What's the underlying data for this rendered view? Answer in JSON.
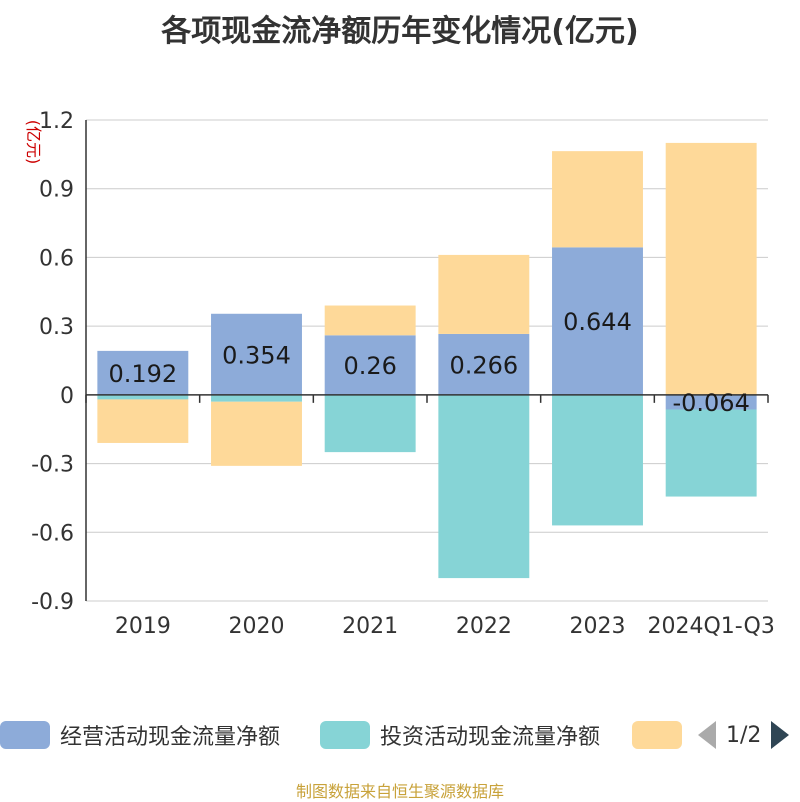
{
  "title": "各项现金流净额历年变化情况(亿元)",
  "source": "制图数据来自恒生聚源数据库",
  "legend": {
    "items": [
      {
        "label": "经营活动现金流量净额",
        "color": "#8dabd9"
      },
      {
        "label": "投资活动现金流量净额",
        "color": "#86d4d6"
      },
      {
        "label": "",
        "color": "#fed999"
      }
    ],
    "pager": "1/2"
  },
  "chart_data": {
    "type": "bar",
    "stacked": true,
    "title": "各项现金流净额历年变化情况(亿元)",
    "ylabel": "(亿元)",
    "ylim": [
      -0.9,
      1.2
    ],
    "yticks": [
      1.2,
      0.9,
      0.6,
      0.3,
      0,
      -0.3,
      -0.6,
      -0.9
    ],
    "ytick_labels": [
      "1.2",
      "0.9",
      "0.6",
      "0.3",
      "0",
      "-0.3",
      "-0.6",
      "-0.9"
    ],
    "categories": [
      "2019",
      "2020",
      "2021",
      "2022",
      "2023",
      "2024Q1-Q3"
    ],
    "grid": true,
    "legend_position": "bottom",
    "series": [
      {
        "name": "经营活动现金流量净额",
        "color": "#8dabd9",
        "values": [
          0.192,
          0.354,
          0.26,
          0.266,
          0.644,
          -0.064
        ],
        "data_labels": [
          "0.192",
          "0.354",
          "0.26",
          "0.266",
          "0.644",
          "-0.064"
        ]
      },
      {
        "name": "投资活动现金流量净额",
        "color": "#86d4d6",
        "values": [
          -0.02,
          -0.03,
          -0.25,
          -0.8,
          -0.57,
          -0.38
        ]
      },
      {
        "color": "#fed999",
        "values": [
          -0.19,
          -0.28,
          0.13,
          0.345,
          0.42,
          1.1
        ]
      }
    ]
  }
}
